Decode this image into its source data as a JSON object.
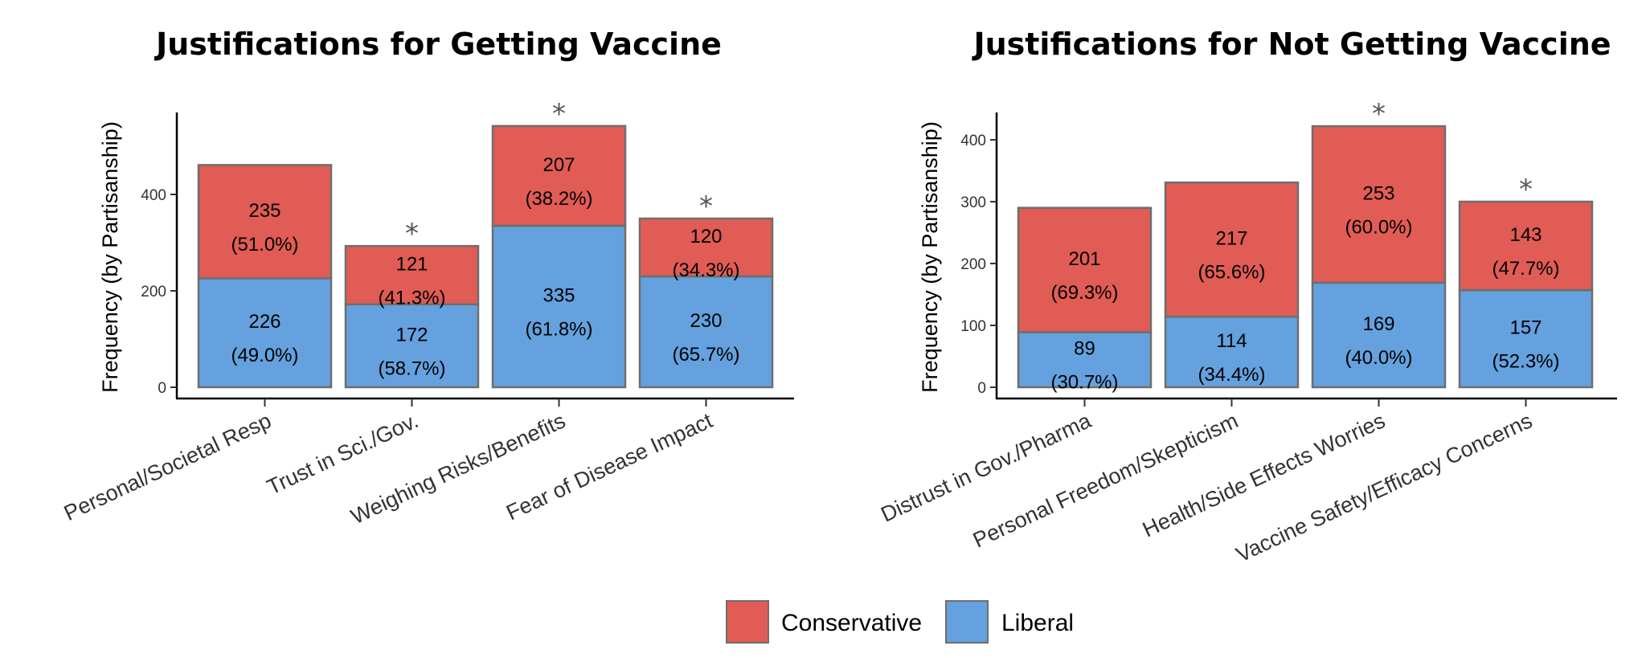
{
  "colors": {
    "conservative": "#E05C55",
    "liberal": "#64A1DE",
    "bar_border": "#6e6e6e"
  },
  "chart_data": [
    {
      "type": "bar",
      "stacked": true,
      "title": "Justifications for Getting Vaccine",
      "ylabel": "Frequency (by Partisanship)",
      "xlabel": "",
      "ylim": [
        0,
        560
      ],
      "yticks": [
        0,
        200,
        400
      ],
      "categories": [
        "Personal/Societal Resp",
        "Trust in Sci./Gov.",
        "Weighing Risks/Benefits",
        "Fear of Disease Impact"
      ],
      "series": [
        {
          "name": "Liberal",
          "values": [
            226,
            172,
            335,
            230
          ],
          "labels": [
            "(49.0%)",
            "(58.7%)",
            "(61.8%)",
            "(65.7%)"
          ]
        },
        {
          "name": "Conservative",
          "values": [
            235,
            121,
            207,
            120
          ],
          "labels": [
            "(51.0%)",
            "(41.3%)",
            "(38.2%)",
            "(34.3%)"
          ]
        }
      ],
      "significance": [
        "",
        "*",
        "*",
        "*"
      ]
    },
    {
      "type": "bar",
      "stacked": true,
      "title": "Justifications for Not Getting Vaccine",
      "ylabel": "Frequency (by Partisanship)",
      "xlabel": "",
      "ylim": [
        0,
        440
      ],
      "yticks": [
        0,
        100,
        200,
        300,
        400
      ],
      "categories": [
        "Distrust in Gov./Pharma",
        "Personal Freedom/Skepticism",
        "Health/Side Effects Worries",
        "Vaccine Safety/Efficacy Concerns"
      ],
      "series": [
        {
          "name": "Liberal",
          "values": [
            89,
            114,
            169,
            157
          ],
          "labels": [
            "(30.7%)",
            "(34.4%)",
            "(40.0%)",
            "(52.3%)"
          ]
        },
        {
          "name": "Conservative",
          "values": [
            201,
            217,
            253,
            143
          ],
          "labels": [
            "(69.3%)",
            "(65.6%)",
            "(60.0%)",
            "(47.7%)"
          ]
        }
      ],
      "significance": [
        "",
        "",
        "*",
        "*"
      ]
    }
  ],
  "legend": {
    "placement": "bottom",
    "items": [
      {
        "label": "Conservative",
        "color": "#E05C55"
      },
      {
        "label": "Liberal",
        "color": "#64A1DE"
      }
    ]
  }
}
